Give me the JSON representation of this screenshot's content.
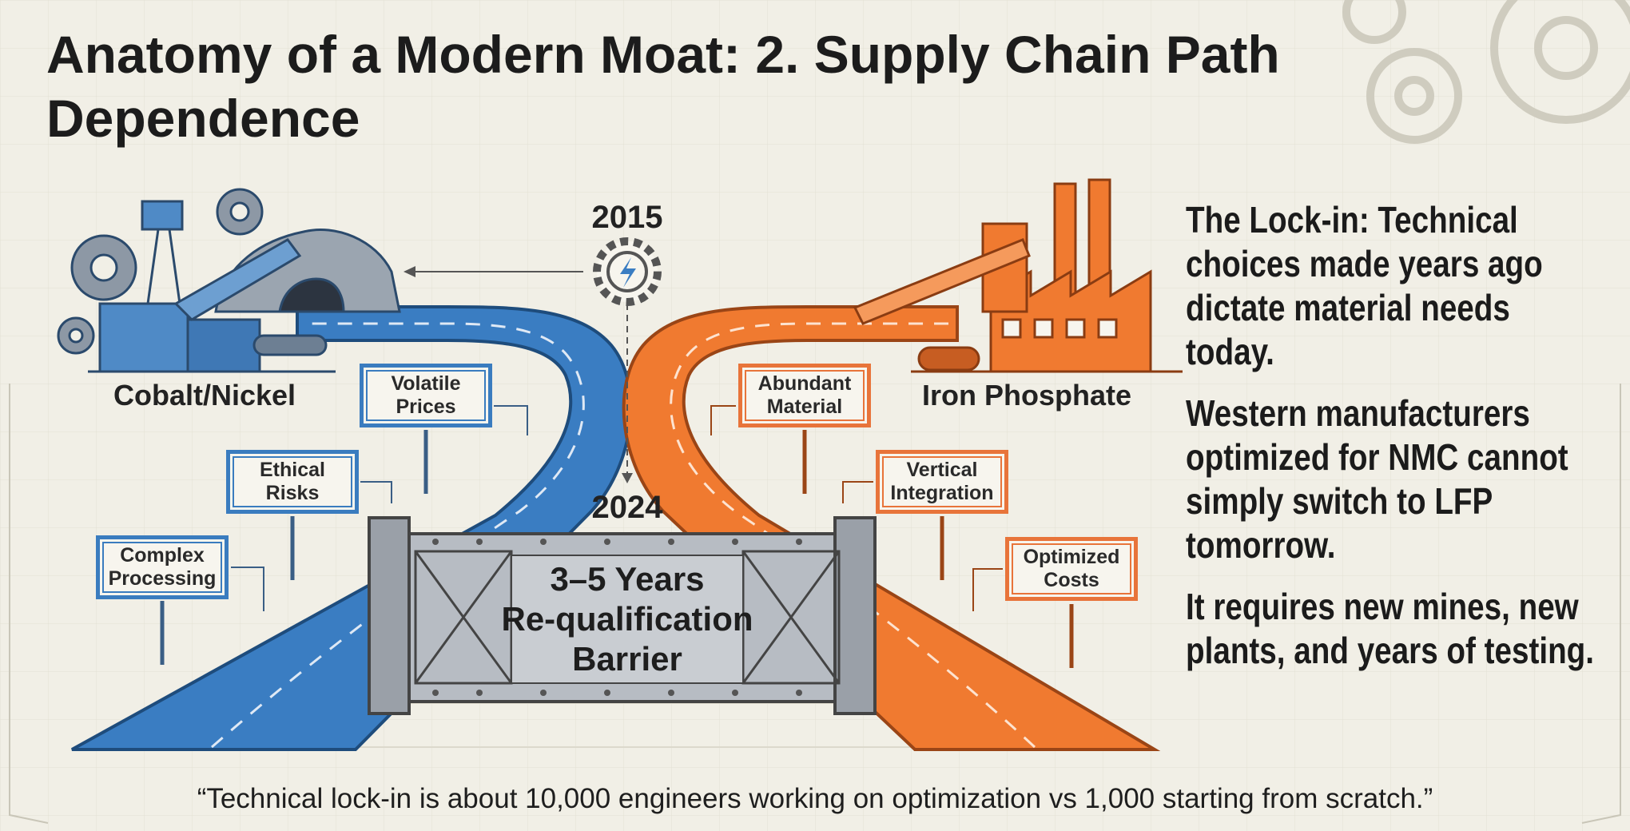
{
  "header": {
    "title": "Anatomy of a Modern Moat: 2. Supply Chain Path Dependence"
  },
  "timeline": {
    "start": "2015",
    "end": "2024"
  },
  "paths": [
    {
      "label": "Cobalt/Nickel",
      "signs": [
        "Volatile Prices",
        "Ethical Risks",
        "Complex Processing"
      ]
    },
    {
      "label": "Iron Phosphate",
      "signs": [
        "Abundant Material",
        "Vertical Integration",
        "Optimized Costs"
      ]
    }
  ],
  "barrier": {
    "lines": [
      "3–5 Years",
      "Re-qualification",
      "Barrier"
    ]
  },
  "explanation": [
    "The Lock-in: Technical choices made years ago dictate material needs today.",
    "Western manufacturers optimized for NMC cannot simply switch to LFP tomorrow.",
    "It requires new mines, new plants, and years of testing."
  ],
  "quote": "“Technical lock-in is about 10,000 engineers working on optimization vs 1,000 starting from scratch.”"
}
